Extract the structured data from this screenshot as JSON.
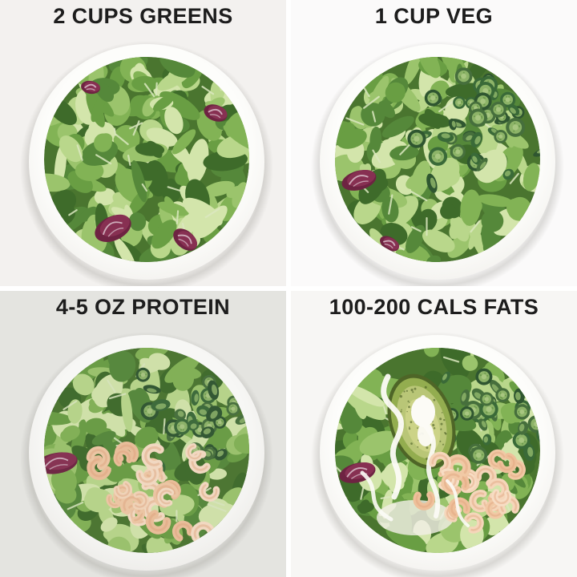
{
  "grid": {
    "divider_color": "#ffffff",
    "cells": [
      {
        "id": "greens",
        "label": "2 CUPS GREENS",
        "background": "#f3f1ef",
        "ingredients": [
          "mixed-greens",
          "radicchio"
        ]
      },
      {
        "id": "veg",
        "label": "1 CUP VEG",
        "background": "#fbfafa",
        "ingredients": [
          "mixed-greens",
          "radicchio",
          "cucumber"
        ]
      },
      {
        "id": "protein",
        "label": "4-5 OZ PROTEIN",
        "background": "#e9e9e5",
        "ingredients": [
          "mixed-greens",
          "radicchio",
          "cucumber",
          "shrimp"
        ]
      },
      {
        "id": "fats",
        "label": "100-200 CALS FATS",
        "background": "#f7f6f4",
        "ingredients": [
          "mixed-greens",
          "radicchio",
          "cucumber",
          "shrimp",
          "avocado",
          "dressing"
        ]
      }
    ]
  },
  "style": {
    "label_color": "#1d1d1d",
    "bowl_color": "#fdfdfc",
    "palette": {
      "greens": [
        "#3e6b2a",
        "#55883a",
        "#699e43",
        "#82b355",
        "#9bc46c",
        "#b9d78b",
        "#d3e5ab"
      ],
      "salad_base": "#4a752f",
      "stem": "#dbe7c0",
      "radicchio": "#873052",
      "radicchio_dark": "#6e2342",
      "radicchio_vein": "#dcc3ce",
      "cucumber_skin": [
        "#2f5630",
        "#3a6a38",
        "#466f3c"
      ],
      "cucumber_flesh": "#8db468",
      "cucumber_flesh_light": "#aecb86",
      "cucumber_seed": "#6c9a4c",
      "shrimp": [
        "#f5d6ba",
        "#f1c9a5",
        "#eec09a",
        "#f7ddc4"
      ],
      "shrimp_shadow": "#dfa57e",
      "avocado_skin": "#4e6527",
      "avocado_flesh": "#93ad4f",
      "avocado_flesh_light": "#b9c677",
      "avocado_inner": "#ccd387",
      "avocado_speckle": "#3f541d",
      "dressing": "#fcfbf6"
    }
  }
}
